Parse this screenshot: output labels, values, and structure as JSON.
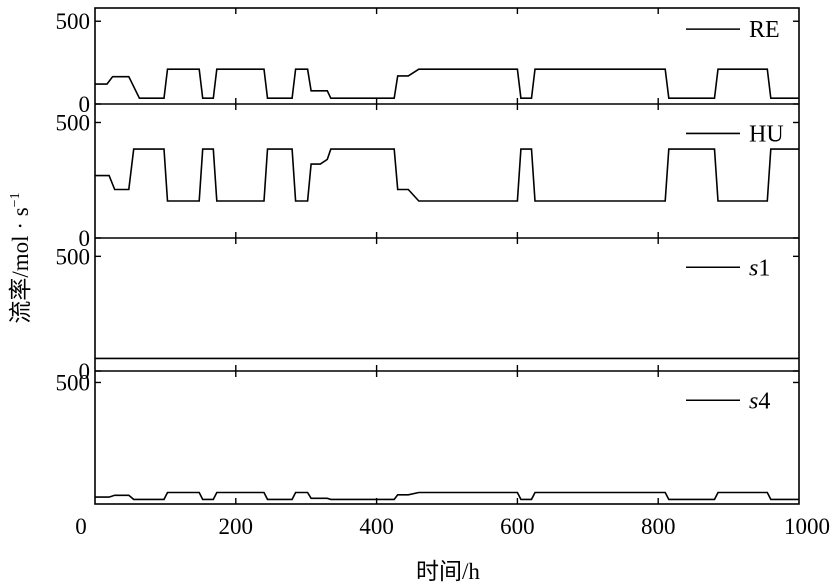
{
  "chart_data": {
    "type": "line",
    "xlabel": "时间/h",
    "ylabel": "流率/mol · s",
    "ylabel_sup": "−1",
    "xlim": [
      0,
      1000
    ],
    "xticks": [
      "0",
      "200",
      "400",
      "600",
      "800",
      "1000"
    ],
    "xtick_values": [
      0,
      200,
      400,
      600,
      800,
      1000
    ],
    "grid": false,
    "legend": "right, inside each panel",
    "panels": [
      {
        "name": "RE",
        "italic": false,
        "ylim": [
          0,
          580
        ],
        "ytick_labels": [
          "0",
          "500"
        ],
        "ytick_values": [
          0,
          500
        ],
        "x": [
          0,
          17,
          25,
          43,
          48,
          63,
          68,
          98,
          103,
          148,
          153,
          168,
          173,
          240,
          245,
          280,
          285,
          302,
          307,
          330,
          335,
          425,
          430,
          445,
          460,
          600,
          605,
          620,
          625,
          810,
          815,
          880,
          885,
          955,
          960,
          1000
        ],
        "y": [
          120,
          120,
          165,
          165,
          165,
          35,
          35,
          35,
          210,
          210,
          35,
          35,
          210,
          210,
          35,
          35,
          210,
          210,
          80,
          80,
          35,
          35,
          170,
          170,
          210,
          210,
          35,
          35,
          210,
          210,
          35,
          35,
          210,
          210,
          35,
          35
        ]
      },
      {
        "name": "HU",
        "italic": false,
        "ylim": [
          0,
          580
        ],
        "ytick_labels": [
          "0",
          "500"
        ],
        "ytick_values": [
          0,
          500
        ],
        "x": [
          0,
          20,
          28,
          48,
          55,
          98,
          103,
          148,
          153,
          168,
          173,
          240,
          245,
          280,
          285,
          302,
          307,
          320,
          330,
          335,
          425,
          430,
          445,
          460,
          600,
          605,
          620,
          625,
          810,
          815,
          880,
          885,
          955,
          960,
          1000
        ],
        "y": [
          270,
          270,
          210,
          210,
          385,
          385,
          160,
          160,
          385,
          385,
          160,
          160,
          385,
          385,
          160,
          160,
          320,
          320,
          340,
          385,
          385,
          210,
          210,
          160,
          160,
          385,
          385,
          160,
          160,
          385,
          385,
          160,
          160,
          385,
          385
        ]
      },
      {
        "name": "s1",
        "name_parts": [
          "s",
          "1"
        ],
        "italic": true,
        "ylim": [
          0,
          580
        ],
        "ytick_labels": [
          "0",
          "500"
        ],
        "ytick_values": [
          0,
          500
        ],
        "x": [
          0,
          1000
        ],
        "y": [
          55,
          55
        ]
      },
      {
        "name": "s4",
        "name_parts": [
          "s",
          "4"
        ],
        "italic": true,
        "ylim": [
          -30,
          550
        ],
        "ytick_labels": [
          "500"
        ],
        "ytick_values": [
          500
        ],
        "x": [
          0,
          20,
          28,
          48,
          55,
          98,
          103,
          148,
          153,
          168,
          173,
          240,
          245,
          280,
          285,
          302,
          307,
          330,
          335,
          425,
          430,
          445,
          460,
          600,
          605,
          620,
          625,
          810,
          815,
          880,
          885,
          955,
          960,
          1000
        ],
        "y": [
          0,
          0,
          8,
          8,
          -10,
          -10,
          20,
          20,
          -10,
          -10,
          20,
          20,
          -10,
          -10,
          20,
          20,
          -5,
          -5,
          -10,
          -10,
          10,
          10,
          20,
          20,
          -10,
          -10,
          20,
          20,
          -10,
          -10,
          20,
          20,
          -10,
          -10
        ]
      }
    ]
  }
}
